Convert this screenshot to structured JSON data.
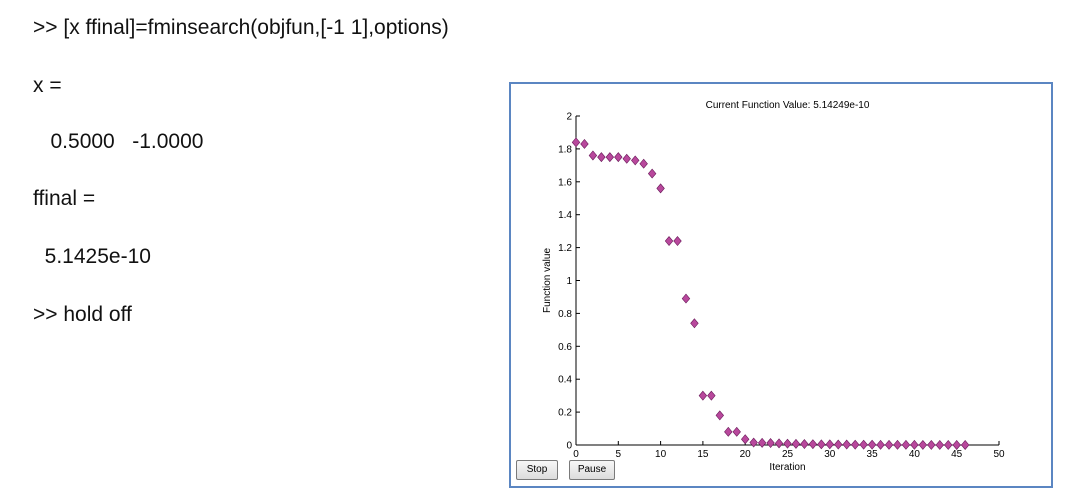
{
  "console": {
    "lines": [
      ">> [x ffinal]=fminsearch(objfun,[-1 1],options)",
      "x =",
      "   0.5000   -1.0000",
      "ffinal =",
      "  5.1425e-10",
      ">> hold off"
    ]
  },
  "figure": {
    "stop_label": "Stop",
    "pause_label": "Pause"
  },
  "chart_data": {
    "type": "scatter",
    "title": "Current Function Value: 5.14249e-10",
    "xlabel": "Iteration",
    "ylabel": "Function value",
    "xlim": [
      0,
      50
    ],
    "ylim": [
      0,
      2
    ],
    "xticks": [
      "0",
      "5",
      "10",
      "15",
      "20",
      "25",
      "30",
      "35",
      "40",
      "45",
      "50"
    ],
    "yticks": [
      "0",
      "0.2",
      "0.4",
      "0.6",
      "0.8",
      "1",
      "1.2",
      "1.4",
      "1.6",
      "1.8",
      "2"
    ],
    "grid": false,
    "marker": "diamond",
    "marker_color": "#b8489c",
    "x": [
      0,
      1,
      2,
      3,
      4,
      5,
      6,
      7,
      8,
      9,
      10,
      11,
      12,
      13,
      14,
      15,
      16,
      17,
      18,
      19,
      20,
      21,
      22,
      23,
      24,
      25,
      26,
      27,
      28,
      29,
      30,
      31,
      32,
      33,
      34,
      35,
      36,
      37,
      38,
      39,
      40,
      41,
      42,
      43,
      44,
      45,
      46
    ],
    "y": [
      1.84,
      1.83,
      1.76,
      1.75,
      1.75,
      1.75,
      1.74,
      1.73,
      1.71,
      1.65,
      1.56,
      1.24,
      1.24,
      0.89,
      0.74,
      0.3,
      0.3,
      0.18,
      0.08,
      0.08,
      0.035,
      0.015,
      0.013,
      0.012,
      0.01,
      0.008,
      0.007,
      0.006,
      0.005,
      0.004,
      0.004,
      0.003,
      0.003,
      0.002,
      0.002,
      0.002,
      0.001,
      0.001,
      0.001,
      0.001,
      0.001,
      0.0005,
      0.0005,
      0.0003,
      0.0002,
      0.0001,
      0.0001
    ]
  }
}
